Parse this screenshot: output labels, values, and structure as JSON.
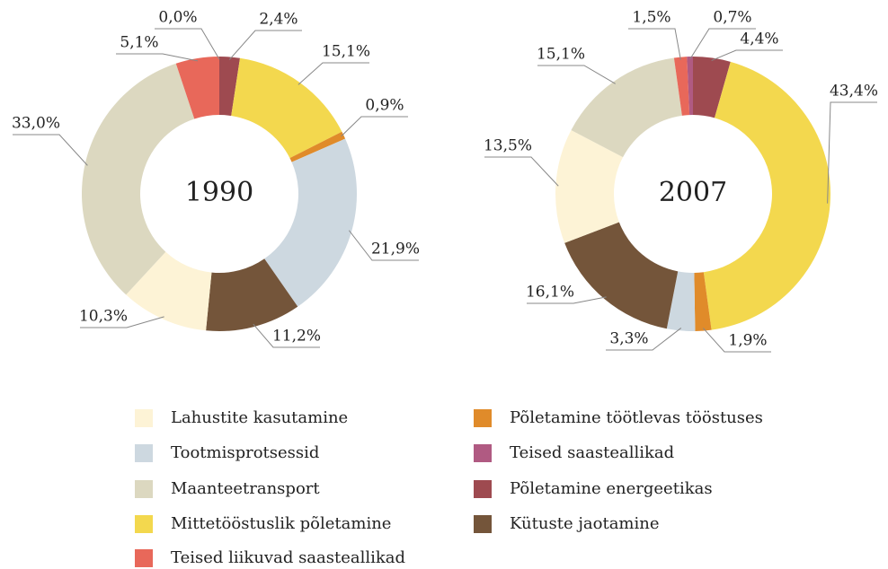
{
  "chart_data": [
    {
      "type": "pie",
      "title": "1990",
      "categories": [
        "Lahustite kasutamine",
        "Tootmisprotsessid",
        "Maanteetransport",
        "Mittetööstuslik põletamine",
        "Teised liikuvad saasteallikad",
        "Põletamine töötlevas tööstuses",
        "Teised saasteallikad",
        "Põletamine energeetikas",
        "Kütuste jaotamine"
      ],
      "colors": [
        "#fdf3d6",
        "#cdd8e0",
        "#dcd8c0",
        "#f3d84e",
        "#e8685a",
        "#e08b2a",
        "#b05a82",
        "#9e4a50",
        "#74553a"
      ],
      "values": [
        10.3,
        21.9,
        33.0,
        15.1,
        5.1,
        0.9,
        0.0,
        2.4,
        11.2
      ],
      "value_labels": [
        "10,3%",
        "21,9%",
        "33,0%",
        "15,1%",
        "5,1%",
        "0,9%",
        "0,0%",
        "2,4%",
        "11,2%"
      ]
    },
    {
      "type": "pie",
      "title": "2007",
      "values": [
        13.5,
        3.3,
        15.1,
        43.4,
        1.5,
        1.9,
        0.7,
        4.4,
        16.1
      ],
      "value_labels": [
        "13,5%",
        "3,3%",
        "15,1%",
        "43,4%",
        "1,5%",
        "1,9%",
        "0,7%",
        "4,4%",
        "16,1%"
      ]
    }
  ]
}
